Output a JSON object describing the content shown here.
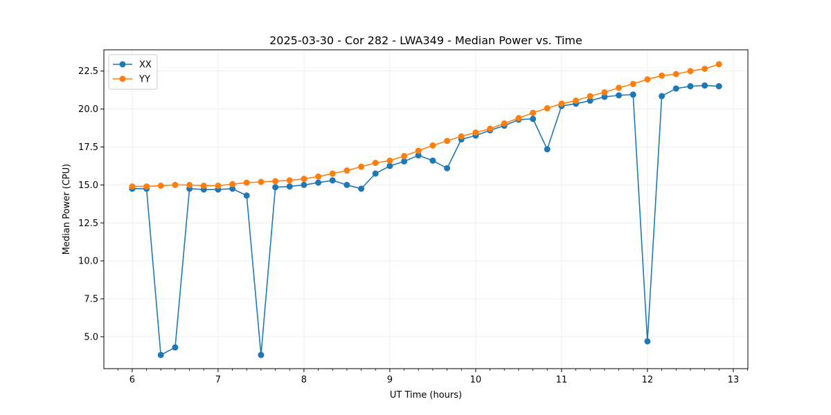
{
  "chart_data": {
    "type": "line",
    "title": "2025-03-30 - Cor 282 - LWA349 - Median Power vs. Time",
    "xlabel": "UT Time (hours)",
    "ylabel": "Median Power (CPU)",
    "xlim": [
      5.67,
      13.17
    ],
    "ylim": [
      2.9,
      23.9
    ],
    "x_ticks": [
      6,
      7,
      8,
      9,
      10,
      11,
      12,
      13
    ],
    "y_ticks": [
      5.0,
      7.5,
      10.0,
      12.5,
      15.0,
      17.5,
      20.0,
      22.5
    ],
    "y_tick_labels": [
      "5.0",
      "7.5",
      "10.0",
      "12.5",
      "15.0",
      "17.5",
      "20.0",
      "22.5"
    ],
    "grid": true,
    "legend_position": "top-left",
    "x": [
      6.0,
      6.167,
      6.333,
      6.5,
      6.667,
      6.833,
      7.0,
      7.167,
      7.333,
      7.5,
      7.667,
      7.833,
      8.0,
      8.167,
      8.333,
      8.5,
      8.667,
      8.833,
      9.0,
      9.167,
      9.333,
      9.5,
      9.667,
      9.833,
      10.0,
      10.167,
      10.333,
      10.5,
      10.667,
      10.833,
      11.0,
      11.167,
      11.333,
      11.5,
      11.667,
      11.833,
      12.0,
      12.167,
      12.333,
      12.5,
      12.667,
      12.833
    ],
    "series": [
      {
        "name": "XX",
        "color": "#1f77b4",
        "values": [
          14.75,
          14.75,
          3.8,
          4.3,
          14.75,
          14.7,
          14.7,
          14.75,
          14.3,
          3.8,
          14.85,
          14.9,
          15.0,
          15.15,
          15.3,
          15.0,
          14.75,
          15.75,
          16.25,
          16.55,
          16.95,
          16.6,
          16.1,
          18.0,
          18.25,
          18.6,
          18.9,
          19.3,
          19.35,
          17.35,
          20.2,
          20.35,
          20.55,
          20.8,
          20.9,
          20.95,
          4.7,
          20.85,
          21.35,
          21.5,
          21.55,
          21.5
        ]
      },
      {
        "name": "YY",
        "color": "#ff7f0e",
        "values": [
          14.9,
          14.9,
          14.95,
          15.0,
          15.0,
          14.95,
          14.95,
          15.05,
          15.15,
          15.2,
          15.25,
          15.3,
          15.4,
          15.55,
          15.75,
          15.95,
          16.2,
          16.45,
          16.6,
          16.9,
          17.25,
          17.6,
          17.9,
          18.2,
          18.45,
          18.7,
          19.05,
          19.4,
          19.75,
          20.05,
          20.35,
          20.55,
          20.85,
          21.1,
          21.4,
          21.65,
          21.95,
          22.2,
          22.3,
          22.5,
          22.65,
          22.95
        ]
      }
    ]
  }
}
